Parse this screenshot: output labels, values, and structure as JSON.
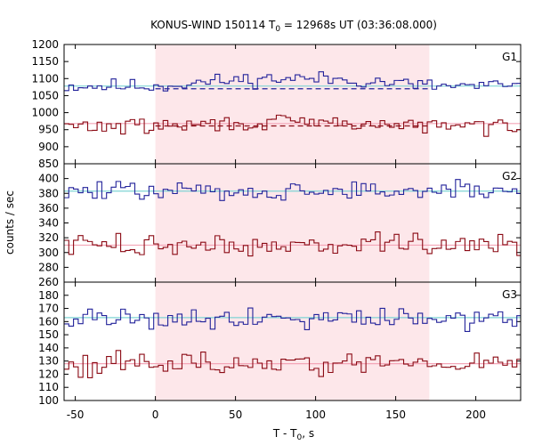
{
  "chart_data": {
    "type": "line",
    "title": {
      "prefix": "KONUS-WIND 150114 T",
      "sub": "0",
      "suffix": " = 12968s UT (03:36:08.000)"
    },
    "xlabel": {
      "prefix": "T - T",
      "sub": "0",
      "suffix": ", s"
    },
    "ylabel": "counts / sec",
    "xlim": [
      -57,
      228
    ],
    "xticks": [
      -50,
      0,
      50,
      100,
      150,
      200
    ],
    "bin_width": 2.944,
    "highlight_interval": [
      0,
      171
    ],
    "colors": {
      "high_series": "#22229a",
      "low_series": "#8b0a14",
      "high_fit": "#7fd4d4",
      "low_fit": "#f4a6b8",
      "highlight": "#fde7ea"
    },
    "panels": [
      {
        "label": "G1",
        "ylim": [
          850,
          1200
        ],
        "yticks": [
          850,
          900,
          950,
          1000,
          1050,
          1100,
          1150,
          1200
        ],
        "series": [
          {
            "level": 1078,
            "noise": 15,
            "seed": 11,
            "bump": 22,
            "fit": 1078,
            "dashed": 1070
          },
          {
            "level": 960,
            "noise": 16,
            "seed": 29,
            "bump": 10,
            "fit": 968,
            "dashed": 961
          }
        ]
      },
      {
        "label": "G2",
        "ylim": [
          260,
          420
        ],
        "yticks": [
          260,
          280,
          300,
          320,
          340,
          360,
          380,
          400
        ],
        "series": [
          {
            "level": 383,
            "noise": 9,
            "seed": 47,
            "bump": 0,
            "fit": 383
          },
          {
            "level": 310,
            "noise": 10,
            "seed": 73,
            "bump": 0,
            "fit": 310
          }
        ]
      },
      {
        "label": "G3",
        "ylim": [
          100,
          190
        ],
        "yticks": [
          100,
          110,
          120,
          130,
          140,
          150,
          160,
          170,
          180
        ],
        "series": [
          {
            "level": 163,
            "noise": 6,
            "seed": 91,
            "bump": 0,
            "fit": 163
          },
          {
            "level": 128,
            "noise": 6,
            "seed": 113,
            "bump": 0,
            "fit": 128
          }
        ]
      }
    ]
  }
}
